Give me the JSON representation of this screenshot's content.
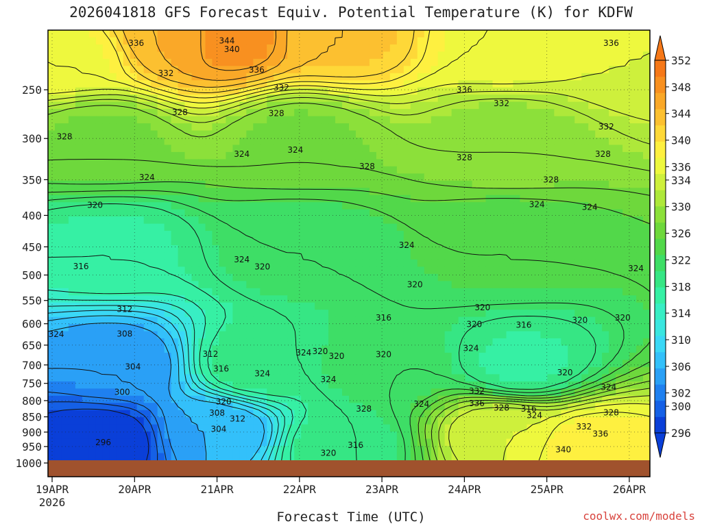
{
  "chart_data": {
    "type": "heatmap",
    "title": "2026041818 GFS Forecast Equiv. Potential Temperature (K) for KDFW",
    "xlabel": "Forecast Time (UTC)",
    "ylabel": "",
    "credit": "coolwx.com/models",
    "x_ticks": [
      "19APR",
      "20APR",
      "21APR",
      "22APR",
      "23APR",
      "24APR",
      "25APR",
      "26APR"
    ],
    "x_year": "2026",
    "x_days": [
      0,
      1,
      2,
      3,
      4,
      5,
      6,
      7
    ],
    "x_range_days": [
      -0.05,
      7.25
    ],
    "y_ticks": [
      250,
      300,
      350,
      400,
      450,
      500,
      550,
      600,
      650,
      700,
      750,
      800,
      850,
      900,
      950,
      1000
    ],
    "y_range_hPa": [
      200,
      1000
    ],
    "y_scale": "log",
    "colorbar": {
      "levels": [
        296,
        298,
        300,
        302,
        304,
        306,
        308,
        310,
        312,
        314,
        316,
        318,
        320,
        322,
        324,
        326,
        328,
        330,
        332,
        334,
        336,
        338,
        340,
        342,
        344,
        346,
        348,
        350,
        352
      ],
      "tick_labels": [
        "296",
        "300",
        "302",
        "306",
        "310",
        "314",
        "318",
        "322",
        "326",
        "330",
        "334",
        "336",
        "340",
        "344",
        "348",
        "352"
      ],
      "tick_values": [
        296,
        300,
        302,
        306,
        310,
        314,
        318,
        322,
        326,
        330,
        334,
        336,
        340,
        344,
        348,
        352
      ],
      "colors": [
        "#0a3fd8",
        "#1560e6",
        "#1f80f0",
        "#2aa0f6",
        "#33c0fa",
        "#3ad8f6",
        "#3ae6e0",
        "#38eec4",
        "#36f0a4",
        "#36e684",
        "#3ede66",
        "#52d84a",
        "#6ed83c",
        "#8ce03a",
        "#aee83a",
        "#cef03c",
        "#eef83e",
        "#fef040",
        "#fed838",
        "#fcc030",
        "#faa828",
        "#f89020",
        "#f67818"
      ]
    },
    "contour_labels": [
      {
        "t": 1.02,
        "p": 210,
        "v": "336"
      },
      {
        "t": 2.12,
        "p": 208,
        "v": "344"
      },
      {
        "t": 2.18,
        "p": 215,
        "v": "340"
      },
      {
        "t": 1.38,
        "p": 235,
        "v": "332"
      },
      {
        "t": 2.48,
        "p": 232,
        "v": "336"
      },
      {
        "t": 2.78,
        "p": 248,
        "v": "332"
      },
      {
        "t": 1.55,
        "p": 272,
        "v": "328"
      },
      {
        "t": 2.72,
        "p": 273,
        "v": "328"
      },
      {
        "t": 0.15,
        "p": 298,
        "v": "328"
      },
      {
        "t": 2.3,
        "p": 318,
        "v": "324"
      },
      {
        "t": 2.95,
        "p": 313,
        "v": "324"
      },
      {
        "t": 3.82,
        "p": 333,
        "v": "328"
      },
      {
        "t": 1.15,
        "p": 347,
        "v": "324"
      },
      {
        "t": 0.52,
        "p": 385,
        "v": "320"
      },
      {
        "t": 0.35,
        "p": 484,
        "v": "316"
      },
      {
        "t": 2.3,
        "p": 472,
        "v": "324"
      },
      {
        "t": 2.55,
        "p": 485,
        "v": "320"
      },
      {
        "t": 4.3,
        "p": 447,
        "v": "324"
      },
      {
        "t": 4.4,
        "p": 518,
        "v": "320"
      },
      {
        "t": 0.88,
        "p": 568,
        "v": "312"
      },
      {
        "t": 0.88,
        "p": 623,
        "v": "308"
      },
      {
        "t": 0.98,
        "p": 705,
        "v": "304"
      },
      {
        "t": 0.85,
        "p": 775,
        "v": "300"
      },
      {
        "t": 0.62,
        "p": 935,
        "v": "296"
      },
      {
        "t": 0.05,
        "p": 624,
        "v": "324"
      },
      {
        "t": 1.92,
        "p": 672,
        "v": "312"
      },
      {
        "t": 2.05,
        "p": 710,
        "v": "316"
      },
      {
        "t": 2.08,
        "p": 803,
        "v": "320"
      },
      {
        "t": 2.0,
        "p": 838,
        "v": "308"
      },
      {
        "t": 2.25,
        "p": 856,
        "v": "312"
      },
      {
        "t": 2.02,
        "p": 890,
        "v": "304"
      },
      {
        "t": 2.55,
        "p": 723,
        "v": "324"
      },
      {
        "t": 3.05,
        "p": 669,
        "v": "324"
      },
      {
        "t": 3.25,
        "p": 665,
        "v": "320"
      },
      {
        "t": 3.45,
        "p": 677,
        "v": "320"
      },
      {
        "t": 3.35,
        "p": 739,
        "v": "324"
      },
      {
        "t": 4.02,
        "p": 587,
        "v": "316"
      },
      {
        "t": 4.02,
        "p": 673,
        "v": "320"
      },
      {
        "t": 3.78,
        "p": 825,
        "v": "328"
      },
      {
        "t": 4.48,
        "p": 810,
        "v": "324"
      },
      {
        "t": 3.68,
        "p": 945,
        "v": "316"
      },
      {
        "t": 3.35,
        "p": 973,
        "v": "320"
      },
      {
        "t": 5.22,
        "p": 565,
        "v": "320"
      },
      {
        "t": 5.12,
        "p": 601,
        "v": "320"
      },
      {
        "t": 5.08,
        "p": 658,
        "v": "324"
      },
      {
        "t": 5.15,
        "p": 772,
        "v": "332"
      },
      {
        "t": 5.15,
        "p": 808,
        "v": "336"
      },
      {
        "t": 5.45,
        "p": 822,
        "v": "328"
      },
      {
        "t": 5.72,
        "p": 603,
        "v": "316"
      },
      {
        "t": 5.78,
        "p": 825,
        "v": "316"
      },
      {
        "t": 5.85,
        "p": 845,
        "v": "324"
      },
      {
        "t": 6.22,
        "p": 720,
        "v": "320"
      },
      {
        "t": 6.4,
        "p": 592,
        "v": "320"
      },
      {
        "t": 6.92,
        "p": 587,
        "v": "320"
      },
      {
        "t": 6.2,
        "p": 961,
        "v": "340"
      },
      {
        "t": 6.45,
        "p": 882,
        "v": "332"
      },
      {
        "t": 6.65,
        "p": 906,
        "v": "336"
      },
      {
        "t": 6.78,
        "p": 837,
        "v": "328"
      },
      {
        "t": 6.75,
        "p": 761,
        "v": "324"
      },
      {
        "t": 7.08,
        "p": 488,
        "v": "324"
      },
      {
        "t": 6.52,
        "p": 388,
        "v": "324"
      },
      {
        "t": 5.88,
        "p": 384,
        "v": "324"
      },
      {
        "t": 6.05,
        "p": 350,
        "v": "328"
      },
      {
        "t": 6.68,
        "p": 318,
        "v": "328"
      },
      {
        "t": 6.72,
        "p": 287,
        "v": "332"
      },
      {
        "t": 6.78,
        "p": 210,
        "v": "336"
      },
      {
        "t": 5.45,
        "p": 263,
        "v": "332"
      },
      {
        "t": 5.0,
        "p": 250,
        "v": "336"
      },
      {
        "t": 5.0,
        "p": 322,
        "v": "328"
      }
    ],
    "field": {
      "description_points": [
        {
          "t": 0.2,
          "p": 220,
          "v": 338
        },
        {
          "t": 1.5,
          "p": 205,
          "v": 346
        },
        {
          "t": 2.1,
          "p": 205,
          "v": 350
        },
        {
          "t": 3.5,
          "p": 205,
          "v": 344
        },
        {
          "t": 5.5,
          "p": 210,
          "v": 338
        },
        {
          "t": 7.0,
          "p": 215,
          "v": 336
        },
        {
          "t": 0.6,
          "p": 300,
          "v": 328
        },
        {
          "t": 3.0,
          "p": 300,
          "v": 328
        },
        {
          "t": 5.5,
          "p": 300,
          "v": 330
        },
        {
          "t": 0.7,
          "p": 450,
          "v": 318
        },
        {
          "t": 3.0,
          "p": 450,
          "v": 322
        },
        {
          "t": 5.5,
          "p": 450,
          "v": 324
        },
        {
          "t": 0.8,
          "p": 700,
          "v": 304
        },
        {
          "t": 2.5,
          "p": 700,
          "v": 320
        },
        {
          "t": 4.0,
          "p": 700,
          "v": 322
        },
        {
          "t": 5.7,
          "p": 700,
          "v": 318
        },
        {
          "t": 0.6,
          "p": 930,
          "v": 296
        },
        {
          "t": 2.0,
          "p": 900,
          "v": 306
        },
        {
          "t": 3.5,
          "p": 950,
          "v": 320
        },
        {
          "t": 5.5,
          "p": 900,
          "v": 336
        },
        {
          "t": 6.5,
          "p": 950,
          "v": 340
        }
      ]
    }
  }
}
